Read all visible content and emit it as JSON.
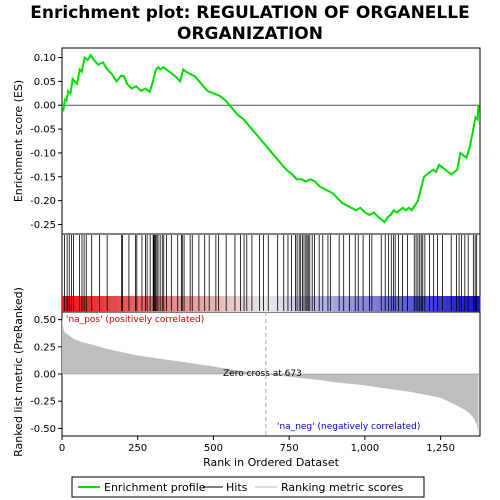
{
  "title_line1": "Enrichment plot: REGULATION OF ORGANELLE",
  "title_line2": "ORGANIZATION",
  "colors": {
    "es_line": "#00dd00",
    "hit_line": "#000000",
    "metric_fill": "#bebebe",
    "pos_label": "#cc0000",
    "neg_label": "#0000cc",
    "zero_line": "#aaaaaa"
  },
  "chart_data": [
    {
      "type": "line",
      "panel": "enrichment",
      "ylabel": "Enrichment score (ES)",
      "xlim": [
        0,
        1380
      ],
      "ylim": [
        -0.27,
        0.12
      ],
      "y_ticks": [
        0.1,
        0.05,
        0.0,
        -0.05,
        -0.1,
        -0.15,
        -0.2,
        -0.25
      ],
      "y_tick_labels": [
        "0.10",
        "0.05",
        "0.00",
        "-0.05",
        "-0.10",
        "-0.15",
        "-0.20",
        "-0.25"
      ],
      "series": [
        {
          "name": "Enrichment profile",
          "x": [
            0,
            5,
            10,
            15,
            20,
            28,
            35,
            42,
            50,
            58,
            65,
            75,
            85,
            95,
            105,
            120,
            135,
            150,
            165,
            180,
            195,
            205,
            215,
            230,
            245,
            260,
            275,
            290,
            300,
            310,
            318,
            325,
            335,
            345,
            355,
            365,
            375,
            390,
            400,
            410,
            425,
            440,
            460,
            480,
            500,
            520,
            540,
            560,
            580,
            600,
            620,
            640,
            660,
            680,
            700,
            720,
            740,
            760,
            775,
            790,
            805,
            820,
            835,
            850,
            865,
            880,
            895,
            910,
            925,
            940,
            955,
            970,
            985,
            1000,
            1015,
            1030,
            1045,
            1055,
            1065,
            1075,
            1085,
            1095,
            1105,
            1115,
            1125,
            1135,
            1145,
            1155,
            1165,
            1175,
            1185,
            1195,
            1205,
            1215,
            1225,
            1235,
            1245,
            1255,
            1265,
            1275,
            1285,
            1295,
            1305,
            1315,
            1325,
            1335,
            1345,
            1355,
            1365,
            1372,
            1375
          ],
          "y": [
            0.0,
            -0.008,
            0.012,
            0.01,
            0.03,
            0.025,
            0.055,
            0.05,
            0.045,
            0.075,
            0.07,
            0.1,
            0.095,
            0.105,
            0.095,
            0.085,
            0.09,
            0.075,
            0.065,
            0.05,
            0.062,
            0.06,
            0.045,
            0.035,
            0.04,
            0.03,
            0.035,
            0.028,
            0.05,
            0.075,
            0.08,
            0.075,
            0.08,
            0.075,
            0.07,
            0.065,
            0.06,
            0.05,
            0.075,
            0.07,
            0.065,
            0.06,
            0.045,
            0.03,
            0.025,
            0.02,
            0.01,
            -0.005,
            -0.02,
            -0.03,
            -0.045,
            -0.06,
            -0.075,
            -0.09,
            -0.105,
            -0.12,
            -0.135,
            -0.145,
            -0.155,
            -0.155,
            -0.16,
            -0.155,
            -0.16,
            -0.17,
            -0.175,
            -0.18,
            -0.185,
            -0.195,
            -0.205,
            -0.21,
            -0.215,
            -0.22,
            -0.215,
            -0.225,
            -0.23,
            -0.225,
            -0.235,
            -0.24,
            -0.245,
            -0.235,
            -0.23,
            -0.22,
            -0.225,
            -0.22,
            -0.215,
            -0.22,
            -0.215,
            -0.22,
            -0.21,
            -0.2,
            -0.175,
            -0.15,
            -0.145,
            -0.14,
            -0.135,
            -0.14,
            -0.125,
            -0.13,
            -0.135,
            -0.14,
            -0.145,
            -0.14,
            -0.135,
            -0.1,
            -0.105,
            -0.11,
            -0.09,
            -0.06,
            -0.025,
            -0.03,
            0.0
          ]
        }
      ]
    },
    {
      "type": "barcode",
      "panel": "hits",
      "legend_name": "Hits",
      "hits": [
        8,
        17,
        24,
        31,
        38,
        58,
        66,
        73,
        80,
        98,
        124,
        149,
        197,
        200,
        221,
        243,
        247,
        264,
        276,
        281,
        291,
        301,
        303,
        306,
        309,
        313,
        317,
        324,
        331,
        336,
        345,
        361,
        382,
        394,
        397,
        403,
        423,
        430,
        452,
        471,
        486,
        508,
        517,
        542,
        571,
        589,
        601,
        610,
        627,
        652,
        665,
        681,
        712,
        732,
        746,
        758,
        771,
        776,
        783,
        788,
        794,
        799,
        805,
        809,
        813,
        818,
        826,
        834,
        849,
        861,
        878,
        886,
        915,
        930,
        949,
        968,
        978,
        994,
        1015,
        1023,
        1054,
        1067,
        1078,
        1087,
        1094,
        1100,
        1111,
        1124,
        1141,
        1163,
        1169,
        1175,
        1181,
        1186,
        1191,
        1198,
        1213,
        1227,
        1240,
        1256,
        1285,
        1302,
        1311,
        1319,
        1330,
        1341,
        1358,
        1364,
        1369
      ]
    },
    {
      "type": "area",
      "panel": "ranking",
      "legend_name": "Ranking metric scores",
      "ylabel": "Ranked list metric (PreRanked)",
      "xlabel": "Rank in Ordered Dataset",
      "xlim": [
        0,
        1380
      ],
      "ylim": [
        -0.57,
        0.57
      ],
      "x_ticks": [
        0,
        250,
        500,
        750,
        1000,
        1250
      ],
      "x_tick_labels": [
        "0",
        "250",
        "500",
        "750",
        "1,000",
        "1,250"
      ],
      "y_ticks": [
        0.5,
        0.25,
        0.0,
        -0.25,
        -0.5
      ],
      "y_tick_labels": [
        "0.50",
        "0.25",
        "0.00",
        "-0.25",
        "-0.50"
      ],
      "x": [
        0,
        2,
        5,
        10,
        20,
        40,
        70,
        100,
        150,
        200,
        250,
        300,
        350,
        400,
        450,
        500,
        550,
        600,
        650,
        673,
        700,
        750,
        800,
        850,
        900,
        950,
        1000,
        1050,
        1100,
        1150,
        1200,
        1250,
        1290,
        1310,
        1330,
        1345,
        1355,
        1362,
        1368,
        1372,
        1375
      ],
      "values": [
        0.52,
        0.47,
        0.41,
        0.38,
        0.36,
        0.32,
        0.29,
        0.27,
        0.23,
        0.2,
        0.17,
        0.15,
        0.13,
        0.11,
        0.09,
        0.07,
        0.045,
        0.025,
        0.01,
        0.0,
        -0.01,
        -0.025,
        -0.04,
        -0.055,
        -0.075,
        -0.09,
        -0.105,
        -0.125,
        -0.145,
        -0.165,
        -0.19,
        -0.22,
        -0.27,
        -0.3,
        -0.33,
        -0.36,
        -0.39,
        -0.42,
        -0.46,
        -0.5,
        -0.55
      ],
      "zero_cross_rank": 673,
      "zero_cross_label": "Zero cross at 673",
      "pos_label": "'na_pos' (positively correlated)",
      "neg_label": "'na_neg' (negatively correlated)"
    }
  ],
  "legend": {
    "items": [
      {
        "label": "Enrichment profile",
        "color": "#00dd00"
      },
      {
        "label": "Hits",
        "color": "#000000"
      },
      {
        "label": "Ranking metric scores",
        "color": "#bebebe"
      }
    ]
  }
}
